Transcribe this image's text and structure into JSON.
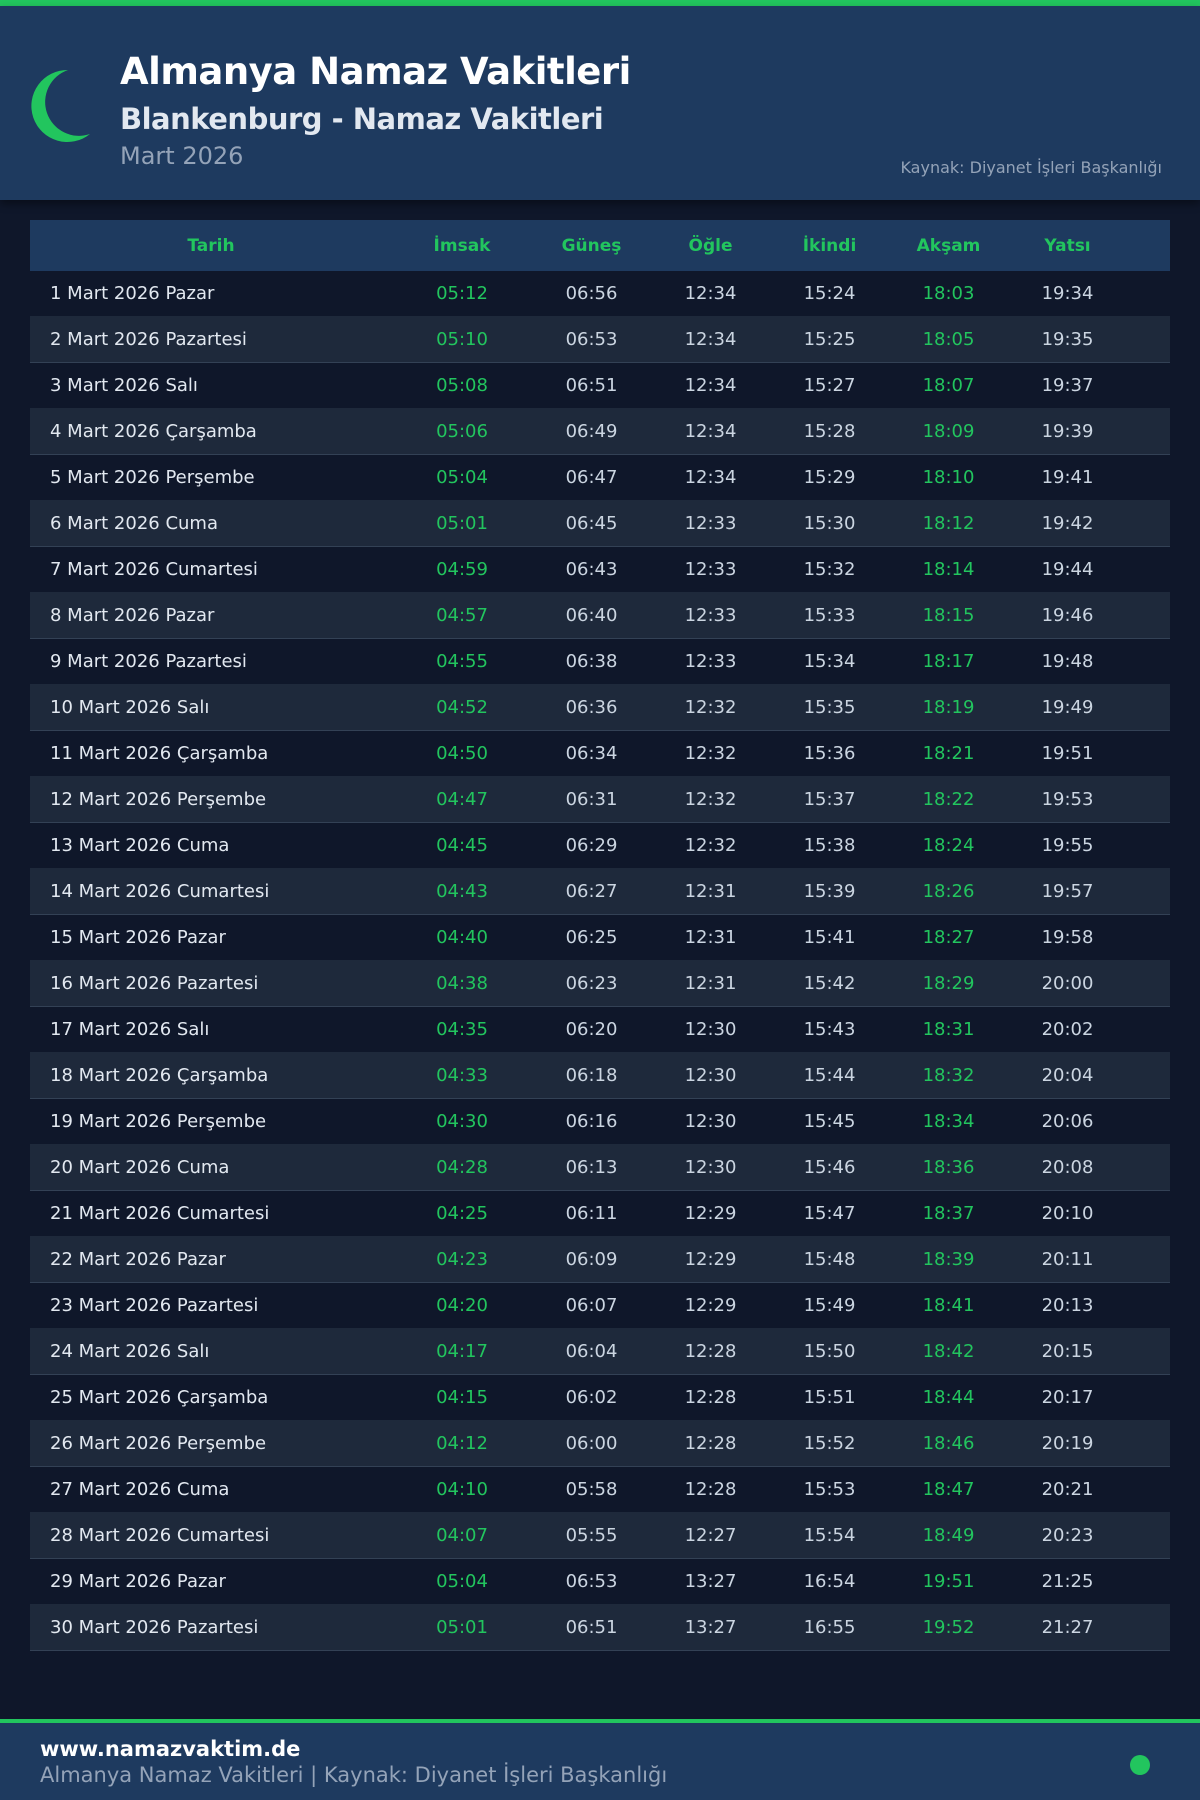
{
  "header": {
    "title": "Almanya Namaz Vakitleri",
    "subtitle": "Blankenburg - Namaz Vakitleri",
    "month": "Mart 2026",
    "source": "Kaynak: Diyanet İşleri Başkanlığı",
    "icon": "crescent-moon-icon"
  },
  "colors": {
    "accent": "#22c55e",
    "header_bg": "#1e3a5f",
    "page_bg": "#0f172a",
    "row_alt": "#1e293b"
  },
  "table": {
    "columns": [
      "Tarih",
      "İmsak",
      "Güneş",
      "Öğle",
      "İkindi",
      "Akşam",
      "Yatsı"
    ],
    "rows": [
      [
        "1 Mart 2026 Pazar",
        "05:12",
        "06:56",
        "12:34",
        "15:24",
        "18:03",
        "19:34"
      ],
      [
        "2 Mart 2026 Pazartesi",
        "05:10",
        "06:53",
        "12:34",
        "15:25",
        "18:05",
        "19:35"
      ],
      [
        "3 Mart 2026 Salı",
        "05:08",
        "06:51",
        "12:34",
        "15:27",
        "18:07",
        "19:37"
      ],
      [
        "4 Mart 2026 Çarşamba",
        "05:06",
        "06:49",
        "12:34",
        "15:28",
        "18:09",
        "19:39"
      ],
      [
        "5 Mart 2026 Perşembe",
        "05:04",
        "06:47",
        "12:34",
        "15:29",
        "18:10",
        "19:41"
      ],
      [
        "6 Mart 2026 Cuma",
        "05:01",
        "06:45",
        "12:33",
        "15:30",
        "18:12",
        "19:42"
      ],
      [
        "7 Mart 2026 Cumartesi",
        "04:59",
        "06:43",
        "12:33",
        "15:32",
        "18:14",
        "19:44"
      ],
      [
        "8 Mart 2026 Pazar",
        "04:57",
        "06:40",
        "12:33",
        "15:33",
        "18:15",
        "19:46"
      ],
      [
        "9 Mart 2026 Pazartesi",
        "04:55",
        "06:38",
        "12:33",
        "15:34",
        "18:17",
        "19:48"
      ],
      [
        "10 Mart 2026 Salı",
        "04:52",
        "06:36",
        "12:32",
        "15:35",
        "18:19",
        "19:49"
      ],
      [
        "11 Mart 2026 Çarşamba",
        "04:50",
        "06:34",
        "12:32",
        "15:36",
        "18:21",
        "19:51"
      ],
      [
        "12 Mart 2026 Perşembe",
        "04:47",
        "06:31",
        "12:32",
        "15:37",
        "18:22",
        "19:53"
      ],
      [
        "13 Mart 2026 Cuma",
        "04:45",
        "06:29",
        "12:32",
        "15:38",
        "18:24",
        "19:55"
      ],
      [
        "14 Mart 2026 Cumartesi",
        "04:43",
        "06:27",
        "12:31",
        "15:39",
        "18:26",
        "19:57"
      ],
      [
        "15 Mart 2026 Pazar",
        "04:40",
        "06:25",
        "12:31",
        "15:41",
        "18:27",
        "19:58"
      ],
      [
        "16 Mart 2026 Pazartesi",
        "04:38",
        "06:23",
        "12:31",
        "15:42",
        "18:29",
        "20:00"
      ],
      [
        "17 Mart 2026 Salı",
        "04:35",
        "06:20",
        "12:30",
        "15:43",
        "18:31",
        "20:02"
      ],
      [
        "18 Mart 2026 Çarşamba",
        "04:33",
        "06:18",
        "12:30",
        "15:44",
        "18:32",
        "20:04"
      ],
      [
        "19 Mart 2026 Perşembe",
        "04:30",
        "06:16",
        "12:30",
        "15:45",
        "18:34",
        "20:06"
      ],
      [
        "20 Mart 2026 Cuma",
        "04:28",
        "06:13",
        "12:30",
        "15:46",
        "18:36",
        "20:08"
      ],
      [
        "21 Mart 2026 Cumartesi",
        "04:25",
        "06:11",
        "12:29",
        "15:47",
        "18:37",
        "20:10"
      ],
      [
        "22 Mart 2026 Pazar",
        "04:23",
        "06:09",
        "12:29",
        "15:48",
        "18:39",
        "20:11"
      ],
      [
        "23 Mart 2026 Pazartesi",
        "04:20",
        "06:07",
        "12:29",
        "15:49",
        "18:41",
        "20:13"
      ],
      [
        "24 Mart 2026 Salı",
        "04:17",
        "06:04",
        "12:28",
        "15:50",
        "18:42",
        "20:15"
      ],
      [
        "25 Mart 2026 Çarşamba",
        "04:15",
        "06:02",
        "12:28",
        "15:51",
        "18:44",
        "20:17"
      ],
      [
        "26 Mart 2026 Perşembe",
        "04:12",
        "06:00",
        "12:28",
        "15:52",
        "18:46",
        "20:19"
      ],
      [
        "27 Mart 2026 Cuma",
        "04:10",
        "05:58",
        "12:28",
        "15:53",
        "18:47",
        "20:21"
      ],
      [
        "28 Mart 2026 Cumartesi",
        "04:07",
        "05:55",
        "12:27",
        "15:54",
        "18:49",
        "20:23"
      ],
      [
        "29 Mart 2026 Pazar",
        "05:04",
        "06:53",
        "13:27",
        "16:54",
        "19:51",
        "21:25"
      ],
      [
        "30 Mart 2026 Pazartesi",
        "05:01",
        "06:51",
        "13:27",
        "16:55",
        "19:52",
        "21:27"
      ]
    ]
  },
  "footer": {
    "site": "www.namazvaktim.de",
    "text": "Almanya Namaz Vakitleri | Kaynak: Diyanet İşleri Başkanlığı"
  }
}
